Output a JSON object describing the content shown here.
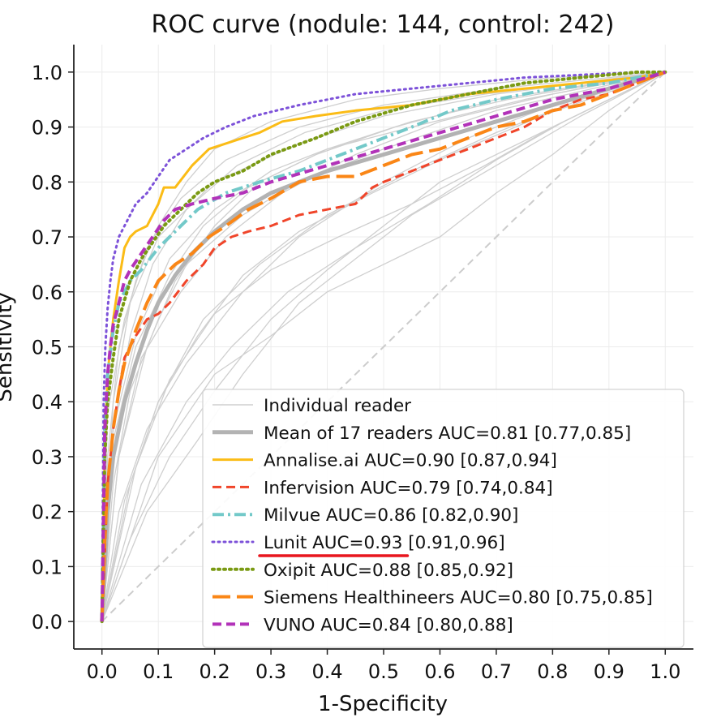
{
  "chart_data": {
    "type": "line",
    "title": "ROC curve (nodule: 144, control: 242)",
    "xlabel": "1-Specificity",
    "ylabel": "Sensitivity",
    "xlim": [
      -0.05,
      1.05
    ],
    "ylim": [
      -0.05,
      1.05
    ],
    "xticks": [
      "0.0",
      "0.1",
      "0.2",
      "0.3",
      "0.4",
      "0.5",
      "0.6",
      "0.7",
      "0.8",
      "0.9",
      "1.0"
    ],
    "yticks": [
      "0.0",
      "0.1",
      "0.2",
      "0.3",
      "0.4",
      "0.5",
      "0.6",
      "0.7",
      "0.8",
      "0.9",
      "1.0"
    ],
    "grid": true,
    "legend_position": "lower-right",
    "annotation": {
      "type": "underline",
      "target": "Lunit AUC=0.93",
      "color": "#e8161e"
    },
    "reference_line": {
      "x": [
        0,
        1
      ],
      "y": [
        0,
        1
      ],
      "color": "#cccccc",
      "style": "dashed"
    },
    "individual_readers": {
      "name": "Individual reader",
      "color": "#cfcfcf",
      "curves": [
        {
          "x": [
            0,
            0.01,
            0.03,
            0.06,
            0.1,
            0.15,
            0.2,
            0.3,
            0.45,
            0.6,
            0.8,
            1.0
          ],
          "y": [
            0,
            0.3,
            0.5,
            0.62,
            0.72,
            0.8,
            0.86,
            0.91,
            0.95,
            0.97,
            0.99,
            1.0
          ]
        },
        {
          "x": [
            0,
            0.02,
            0.05,
            0.1,
            0.15,
            0.25,
            0.35,
            0.5,
            0.7,
            1.0
          ],
          "y": [
            0,
            0.25,
            0.42,
            0.55,
            0.65,
            0.74,
            0.8,
            0.86,
            0.93,
            1.0
          ]
        },
        {
          "x": [
            0,
            0.03,
            0.08,
            0.15,
            0.25,
            0.35,
            0.5,
            0.65,
            0.8,
            1.0
          ],
          "y": [
            0,
            0.2,
            0.35,
            0.47,
            0.6,
            0.7,
            0.8,
            0.88,
            0.94,
            1.0
          ]
        },
        {
          "x": [
            0,
            0.02,
            0.06,
            0.12,
            0.2,
            0.3,
            0.4,
            0.55,
            0.75,
            1.0
          ],
          "y": [
            0,
            0.35,
            0.52,
            0.66,
            0.75,
            0.82,
            0.86,
            0.9,
            0.95,
            1.0
          ]
        },
        {
          "x": [
            0,
            0.05,
            0.12,
            0.2,
            0.3,
            0.4,
            0.5,
            0.6,
            0.8,
            1.0
          ],
          "y": [
            0,
            0.15,
            0.3,
            0.42,
            0.55,
            0.64,
            0.72,
            0.8,
            0.9,
            1.0
          ]
        },
        {
          "x": [
            0,
            0.02,
            0.05,
            0.1,
            0.2,
            0.35,
            0.5,
            0.7,
            0.85,
            1.0
          ],
          "y": [
            0,
            0.4,
            0.58,
            0.7,
            0.8,
            0.87,
            0.92,
            0.96,
            0.98,
            1.0
          ]
        },
        {
          "x": [
            0,
            0.04,
            0.1,
            0.18,
            0.28,
            0.4,
            0.55,
            0.7,
            0.85,
            1.0
          ],
          "y": [
            0,
            0.22,
            0.4,
            0.55,
            0.65,
            0.74,
            0.82,
            0.89,
            0.95,
            1.0
          ]
        },
        {
          "x": [
            0,
            0.08,
            0.17,
            0.25,
            0.35,
            0.45,
            0.55,
            0.65,
            0.75,
            0.85,
            1.0
          ],
          "y": [
            0,
            0.2,
            0.33,
            0.45,
            0.58,
            0.66,
            0.74,
            0.8,
            0.86,
            0.92,
            1.0
          ]
        },
        {
          "x": [
            0,
            0.03,
            0.07,
            0.14,
            0.22,
            0.32,
            0.45,
            0.6,
            0.8,
            1.0
          ],
          "y": [
            0,
            0.3,
            0.48,
            0.6,
            0.7,
            0.78,
            0.85,
            0.91,
            0.96,
            1.0
          ]
        },
        {
          "x": [
            0,
            0.06,
            0.12,
            0.2,
            0.3,
            0.42,
            0.55,
            0.68,
            0.8,
            1.0
          ],
          "y": [
            0,
            0.28,
            0.44,
            0.56,
            0.64,
            0.7,
            0.76,
            0.83,
            0.9,
            1.0
          ]
        },
        {
          "x": [
            0,
            0.01,
            0.04,
            0.08,
            0.14,
            0.22,
            0.35,
            0.5,
            0.7,
            1.0
          ],
          "y": [
            0,
            0.38,
            0.55,
            0.68,
            0.77,
            0.84,
            0.9,
            0.94,
            0.97,
            1.0
          ]
        },
        {
          "x": [
            0,
            0.1,
            0.2,
            0.3,
            0.4,
            0.5,
            0.6,
            0.7,
            0.8,
            0.9,
            1.0
          ],
          "y": [
            0,
            0.3,
            0.45,
            0.52,
            0.6,
            0.65,
            0.7,
            0.78,
            0.85,
            0.93,
            1.0
          ]
        },
        {
          "x": [
            0,
            0.02,
            0.06,
            0.12,
            0.18,
            0.26,
            0.38,
            0.52,
            0.7,
            1.0
          ],
          "y": [
            0,
            0.33,
            0.5,
            0.63,
            0.72,
            0.79,
            0.85,
            0.9,
            0.95,
            1.0
          ]
        },
        {
          "x": [
            0,
            0.05,
            0.1,
            0.17,
            0.25,
            0.35,
            0.48,
            0.62,
            0.78,
            1.0
          ],
          "y": [
            0,
            0.25,
            0.4,
            0.52,
            0.63,
            0.71,
            0.78,
            0.85,
            0.92,
            1.0
          ]
        },
        {
          "x": [
            0,
            0.03,
            0.08,
            0.13,
            0.2,
            0.28,
            0.4,
            0.55,
            0.72,
            1.0
          ],
          "y": [
            0,
            0.3,
            0.5,
            0.62,
            0.72,
            0.8,
            0.86,
            0.91,
            0.95,
            1.0
          ]
        },
        {
          "x": [
            0,
            0.07,
            0.15,
            0.23,
            0.33,
            0.45,
            0.58,
            0.7,
            0.82,
            1.0
          ],
          "y": [
            0,
            0.25,
            0.4,
            0.5,
            0.6,
            0.68,
            0.76,
            0.84,
            0.91,
            1.0
          ]
        },
        {
          "x": [
            0,
            0.02,
            0.05,
            0.09,
            0.15,
            0.24,
            0.36,
            0.5,
            0.68,
            1.0
          ],
          "y": [
            0,
            0.35,
            0.52,
            0.65,
            0.75,
            0.83,
            0.89,
            0.93,
            0.96,
            1.0
          ]
        }
      ]
    },
    "series": [
      {
        "name": "Mean of 17 readers AUC=0.81 [0.77,0.85]",
        "color": "#b3b3b3",
        "dash": "solid",
        "width": 5,
        "x": [
          0,
          0.01,
          0.02,
          0.04,
          0.06,
          0.08,
          0.1,
          0.13,
          0.16,
          0.2,
          0.25,
          0.3,
          0.4,
          0.5,
          0.6,
          0.7,
          0.8,
          0.9,
          1.0
        ],
        "y": [
          0,
          0.2,
          0.3,
          0.4,
          0.47,
          0.53,
          0.58,
          0.63,
          0.67,
          0.71,
          0.75,
          0.78,
          0.82,
          0.85,
          0.88,
          0.91,
          0.94,
          0.97,
          1.0
        ]
      },
      {
        "name": "Annalise.ai AUC=0.90 [0.87,0.94]",
        "color": "#fbbc16",
        "dash": "solid",
        "width": 3,
        "x": [
          0,
          0.005,
          0.01,
          0.02,
          0.03,
          0.04,
          0.05,
          0.06,
          0.08,
          0.1,
          0.11,
          0.13,
          0.16,
          0.19,
          0.22,
          0.25,
          0.28,
          0.32,
          0.38,
          0.45,
          0.55,
          0.65,
          0.75,
          0.85,
          0.95,
          1.0
        ],
        "y": [
          0,
          0.3,
          0.45,
          0.55,
          0.62,
          0.68,
          0.7,
          0.71,
          0.72,
          0.76,
          0.79,
          0.79,
          0.83,
          0.86,
          0.87,
          0.88,
          0.89,
          0.91,
          0.92,
          0.93,
          0.94,
          0.96,
          0.97,
          0.98,
          0.99,
          1.0
        ]
      },
      {
        "name": "Infervision AUC=0.79 [0.74,0.84]",
        "color": "#f0452a",
        "dash": "dashed",
        "width": 3,
        "x": [
          0,
          0.01,
          0.02,
          0.03,
          0.04,
          0.06,
          0.08,
          0.1,
          0.12,
          0.15,
          0.18,
          0.2,
          0.23,
          0.26,
          0.3,
          0.35,
          0.4,
          0.45,
          0.48,
          0.5,
          0.55,
          0.6,
          0.65,
          0.7,
          0.75,
          0.8,
          0.85,
          0.9,
          0.95,
          1.0
        ],
        "y": [
          0,
          0.25,
          0.35,
          0.42,
          0.48,
          0.52,
          0.55,
          0.56,
          0.58,
          0.62,
          0.65,
          0.68,
          0.7,
          0.71,
          0.72,
          0.74,
          0.75,
          0.76,
          0.79,
          0.8,
          0.82,
          0.84,
          0.86,
          0.88,
          0.9,
          0.93,
          0.95,
          0.96,
          0.98,
          1.0
        ]
      },
      {
        "name": "Milvue AUC=0.86 [0.82,0.90]",
        "color": "#73c9c9",
        "dash": "dashdot",
        "width": 4,
        "x": [
          0,
          0.005,
          0.01,
          0.02,
          0.03,
          0.05,
          0.07,
          0.1,
          0.13,
          0.17,
          0.22,
          0.28,
          0.35,
          0.45,
          0.55,
          0.62,
          0.7,
          0.8,
          0.9,
          1.0
        ],
        "y": [
          0,
          0.35,
          0.45,
          0.53,
          0.58,
          0.62,
          0.64,
          0.68,
          0.71,
          0.75,
          0.78,
          0.8,
          0.82,
          0.86,
          0.9,
          0.93,
          0.95,
          0.97,
          0.98,
          1.0
        ]
      },
      {
        "name": "Lunit AUC=0.93 [0.91,0.96]",
        "color": "#7d52d9",
        "dash": "dotted",
        "width": 3,
        "x": [
          0,
          0.003,
          0.006,
          0.01,
          0.015,
          0.02,
          0.03,
          0.04,
          0.05,
          0.06,
          0.08,
          0.1,
          0.12,
          0.15,
          0.18,
          0.22,
          0.27,
          0.35,
          0.45,
          0.55,
          0.65,
          0.75,
          0.85,
          0.95,
          1.0
        ],
        "y": [
          0,
          0.4,
          0.5,
          0.57,
          0.62,
          0.66,
          0.7,
          0.72,
          0.74,
          0.76,
          0.78,
          0.81,
          0.84,
          0.86,
          0.88,
          0.9,
          0.92,
          0.94,
          0.96,
          0.97,
          0.98,
          0.99,
          0.995,
          1.0,
          1.0
        ]
      },
      {
        "name": "Oxipit AUC=0.88 [0.85,0.92]",
        "color": "#7a9a13",
        "dash": "dotted",
        "width": 4,
        "x": [
          0,
          0.005,
          0.01,
          0.02,
          0.03,
          0.05,
          0.07,
          0.09,
          0.11,
          0.14,
          0.17,
          0.2,
          0.25,
          0.3,
          0.38,
          0.45,
          0.55,
          0.65,
          0.75,
          0.85,
          0.95,
          1.0
        ],
        "y": [
          0,
          0.3,
          0.4,
          0.48,
          0.55,
          0.62,
          0.66,
          0.69,
          0.72,
          0.75,
          0.78,
          0.8,
          0.82,
          0.85,
          0.88,
          0.91,
          0.94,
          0.96,
          0.98,
          0.99,
          1.0,
          1.0
        ]
      },
      {
        "name": "Siemens Healthineers AUC=0.80 [0.75,0.85]",
        "color": "#fa8616",
        "dash": "longdash",
        "width": 4,
        "x": [
          0,
          0.005,
          0.01,
          0.02,
          0.03,
          0.04,
          0.06,
          0.08,
          0.1,
          0.13,
          0.16,
          0.19,
          0.22,
          0.26,
          0.3,
          0.35,
          0.4,
          0.45,
          0.5,
          0.55,
          0.6,
          0.65,
          0.7,
          0.75,
          0.8,
          0.85,
          0.9,
          0.95,
          1.0
        ],
        "y": [
          0,
          0.15,
          0.25,
          0.35,
          0.42,
          0.47,
          0.53,
          0.58,
          0.62,
          0.65,
          0.67,
          0.7,
          0.72,
          0.75,
          0.77,
          0.8,
          0.81,
          0.81,
          0.83,
          0.85,
          0.86,
          0.88,
          0.9,
          0.91,
          0.93,
          0.94,
          0.96,
          0.98,
          1.0
        ]
      },
      {
        "name": "VUNO AUC=0.84 [0.80,0.88]",
        "color": "#b232b9",
        "dash": "dashed",
        "width": 4,
        "x": [
          0,
          0.005,
          0.01,
          0.015,
          0.02,
          0.03,
          0.04,
          0.05,
          0.07,
          0.09,
          0.11,
          0.13,
          0.16,
          0.2,
          0.25,
          0.3,
          0.4,
          0.5,
          0.6,
          0.7,
          0.8,
          0.9,
          1.0
        ],
        "y": [
          0,
          0.35,
          0.45,
          0.5,
          0.54,
          0.58,
          0.62,
          0.64,
          0.67,
          0.7,
          0.73,
          0.75,
          0.76,
          0.77,
          0.78,
          0.8,
          0.83,
          0.86,
          0.89,
          0.92,
          0.95,
          0.97,
          1.0
        ]
      }
    ]
  }
}
